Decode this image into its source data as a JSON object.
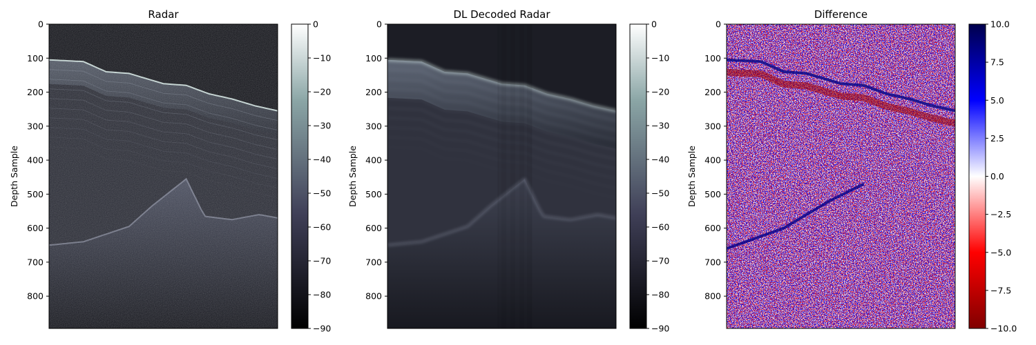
{
  "chart_data": [
    {
      "type": "heatmap",
      "title": "Radar",
      "ylabel": "Depth Sample",
      "xlabel": "",
      "ylim": [
        895,
        0
      ],
      "yticks": [
        0,
        100,
        200,
        300,
        400,
        500,
        600,
        700,
        800
      ],
      "ytick_labels": [
        "0",
        "100",
        "200",
        "300",
        "400",
        "500",
        "600",
        "700",
        "800"
      ],
      "colormap": "bone",
      "colorbar": {
        "range": [
          -90,
          0
        ],
        "ticks": [
          0,
          -10,
          -20,
          -30,
          -40,
          -50,
          -60,
          -70,
          -80,
          -90
        ],
        "tick_labels": [
          "0",
          "−10",
          "−20",
          "−30",
          "−40",
          "−50",
          "−60",
          "−70",
          "−80",
          "−90"
        ]
      },
      "features": {
        "surface_depth_x": [
          0,
          0.15,
          0.25,
          0.35,
          0.5,
          0.6,
          0.7,
          0.8,
          0.9,
          1.0
        ],
        "surface_depth": [
          105,
          110,
          140,
          145,
          175,
          180,
          205,
          220,
          240,
          255
        ],
        "bed_depth_x": [
          0,
          0.15,
          0.35,
          0.45,
          0.6,
          0.68,
          0.8,
          0.92,
          1.0
        ],
        "bed_depth": [
          650,
          640,
          595,
          535,
          455,
          565,
          575,
          560,
          570
        ]
      }
    },
    {
      "type": "heatmap",
      "title": "DL Decoded Radar",
      "ylabel": "Depth Sample",
      "xlabel": "",
      "ylim": [
        895,
        0
      ],
      "yticks": [
        0,
        100,
        200,
        300,
        400,
        500,
        600,
        700,
        800
      ],
      "ytick_labels": [
        "0",
        "100",
        "200",
        "300",
        "400",
        "500",
        "600",
        "700",
        "800"
      ],
      "colormap": "bone",
      "colorbar": {
        "range": [
          -90,
          0
        ],
        "ticks": [
          0,
          -10,
          -20,
          -30,
          -40,
          -50,
          -60,
          -70,
          -80,
          -90
        ],
        "tick_labels": [
          "0",
          "−10",
          "−20",
          "−30",
          "−40",
          "−50",
          "−60",
          "−70",
          "−80",
          "−90"
        ]
      },
      "features": {
        "surface_depth_x": [
          0,
          0.15,
          0.25,
          0.35,
          0.5,
          0.6,
          0.7,
          0.8,
          0.9,
          1.0
        ],
        "surface_depth": [
          105,
          110,
          140,
          145,
          175,
          180,
          205,
          220,
          240,
          255
        ],
        "bed_depth_x": [
          0,
          0.15,
          0.35,
          0.45,
          0.6,
          0.68,
          0.8,
          0.92,
          1.0
        ],
        "bed_depth": [
          650,
          640,
          595,
          535,
          455,
          565,
          575,
          560,
          570
        ]
      }
    },
    {
      "type": "heatmap",
      "title": "Difference",
      "ylabel": "Depth Sample",
      "xlabel": "",
      "ylim": [
        895,
        0
      ],
      "yticks": [
        0,
        100,
        200,
        300,
        400,
        500,
        600,
        700,
        800
      ],
      "ytick_labels": [
        "0",
        "100",
        "200",
        "300",
        "400",
        "500",
        "600",
        "700",
        "800"
      ],
      "colormap": "seismic_r",
      "colorbar": {
        "range": [
          -10,
          10
        ],
        "ticks": [
          10,
          7.5,
          5,
          2.5,
          0,
          -2.5,
          -5,
          -7.5,
          -10
        ],
        "tick_labels": [
          "10.0",
          "7.5",
          "5.0",
          "2.5",
          "0.0",
          "−2.5",
          "−5.0",
          "−7.5",
          "−10.0"
        ]
      }
    }
  ]
}
